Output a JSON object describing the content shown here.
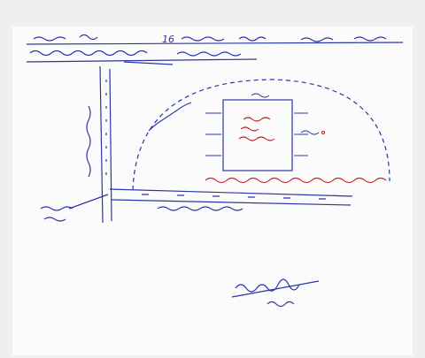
{
  "header": {
    "number": "16"
  }
}
